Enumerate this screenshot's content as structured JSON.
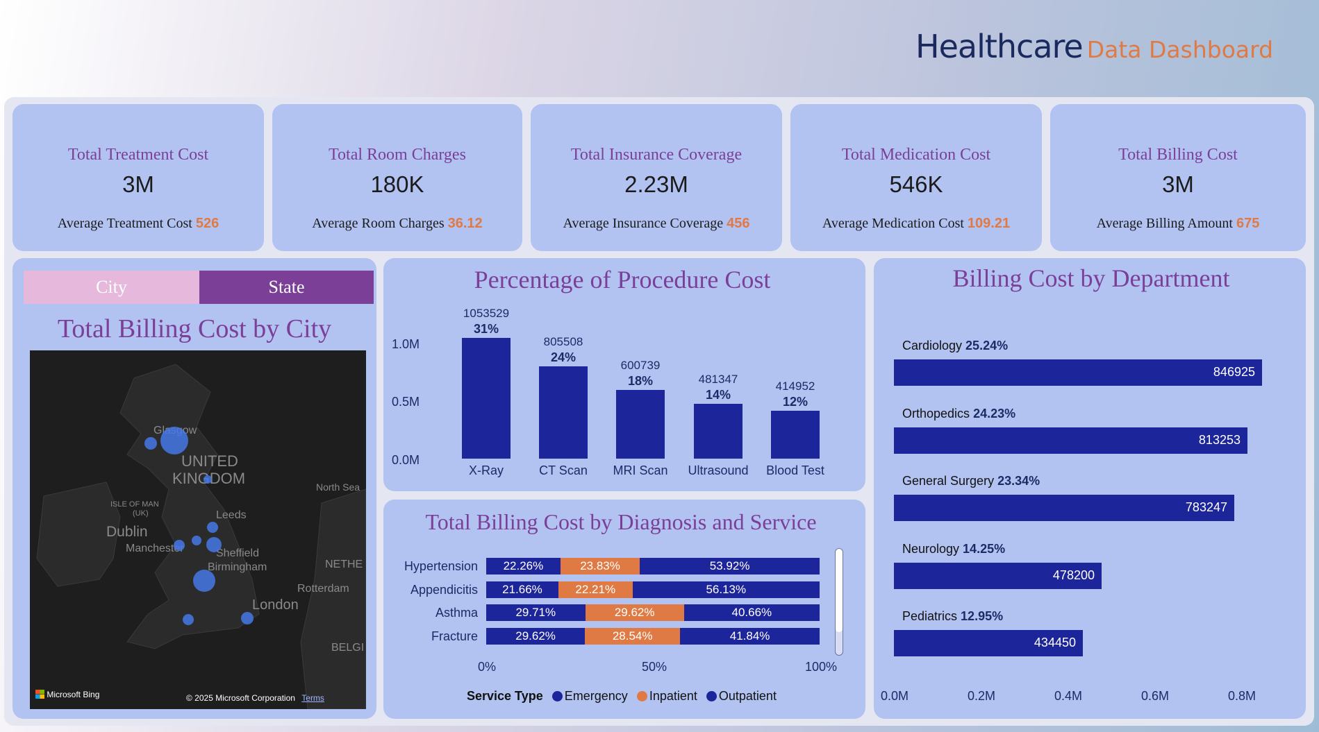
{
  "header": {
    "title": "Healthcare",
    "subtitle": "Data Dashboard"
  },
  "kpis": [
    {
      "title": "Total Treatment Cost",
      "value": "3M",
      "avg_label": "Average Treatment Cost",
      "avg_value": "526"
    },
    {
      "title": "Total Room Charges",
      "value": "180K",
      "avg_label": "Average Room Charges",
      "avg_value": "36.12"
    },
    {
      "title": "Total Insurance Coverage",
      "value": "2.23M",
      "avg_label": "Average Insurance Coverage",
      "avg_value": "456"
    },
    {
      "title": "Total Medication Cost",
      "value": "546K",
      "avg_label": "Average Medication Cost",
      "avg_value": "109.21"
    },
    {
      "title": "Total Billing Cost",
      "value": "3M",
      "avg_label": "Average Billing Amount",
      "avg_value": "675"
    }
  ],
  "toggle": {
    "city": "City",
    "state": "State",
    "city_color": "#e6b8dc",
    "state_color": "#7b3f98"
  },
  "map_panel": {
    "title": "Total Billing Cost by City",
    "labels": {
      "glasgow": "Glasgow",
      "uk_line1": "UNITED",
      "uk_line2": "KINGDOM",
      "north_sea": "North Sea",
      "isle_of_man1": "ISLE OF MAN",
      "isle_of_man2": "(UK)",
      "dublin": "Dublin",
      "leeds": "Leeds",
      "manchester": "Manchester",
      "sheffield": "Sheffield",
      "birmingham": "Birmingham",
      "nethe": "NETHE",
      "rotterdam": "Rotterdam",
      "london": "London",
      "belgi": "BELGI"
    },
    "attribution": {
      "brand": "Microsoft Bing",
      "copyright": "© 2025 Microsoft Corporation",
      "terms": "Terms"
    }
  },
  "procedure_panel": {
    "title": "Percentage of Procedure Cost",
    "y_ticks": [
      "1.0M",
      "0.5M",
      "0.0M"
    ]
  },
  "diagnosis_panel": {
    "title": "Total Billing Cost by Diagnosis and Service",
    "x_ticks": [
      "0%",
      "50%",
      "100%"
    ],
    "legend_title": "Service Type",
    "legend": [
      "Emergency",
      "Inpatient",
      "Outpatient"
    ]
  },
  "department_panel": {
    "title": "Billing Cost by Department",
    "x_ticks": [
      "0.0M",
      "0.2M",
      "0.4M",
      "0.6M",
      "0.8M"
    ]
  },
  "colors": {
    "bar": "#1c259a",
    "accent": "#e07a45",
    "title": "#7b3f98",
    "card": "#b2c3f2"
  },
  "chart_data": [
    {
      "type": "bar",
      "title": "Percentage of Procedure Cost",
      "categories": [
        "X-Ray",
        "CT Scan",
        "MRI Scan",
        "Ultrasound",
        "Blood Test"
      ],
      "values": [
        1053529,
        805508,
        600739,
        481347,
        414952
      ],
      "value_labels": [
        "1053529",
        "805508",
        "600739",
        "481347",
        "414952"
      ],
      "percent_labels": [
        "31%",
        "24%",
        "18%",
        "14%",
        "12%"
      ],
      "ylim": [
        0,
        1053529
      ]
    },
    {
      "type": "bar",
      "title": "Total Billing Cost by Diagnosis and Service",
      "orientation": "horizontal-stacked-100",
      "categories": [
        "Hypertension",
        "Appendicitis",
        "Asthma",
        "Fracture"
      ],
      "series": [
        {
          "name": "Emergency",
          "color": "#1c259a",
          "values": [
            22.26,
            21.66,
            29.71,
            29.62
          ],
          "labels": [
            "22.26%",
            "21.66%",
            "29.71%",
            "29.62%"
          ]
        },
        {
          "name": "Inpatient",
          "color": "#e07a45",
          "values": [
            23.83,
            22.21,
            29.62,
            28.54
          ],
          "labels": [
            "23.83%",
            "22.21%",
            "29.62%",
            "28.54%"
          ]
        },
        {
          "name": "Outpatient",
          "color": "#1c259a",
          "values": [
            53.92,
            56.13,
            40.66,
            41.84
          ],
          "labels": [
            "53.92%",
            "56.13%",
            "40.66%",
            "41.84%"
          ]
        }
      ],
      "xlim": [
        0,
        100
      ]
    },
    {
      "type": "bar",
      "title": "Billing Cost by Department",
      "orientation": "horizontal",
      "categories": [
        "Cardiology",
        "Orthopedics",
        "General Surgery",
        "Neurology",
        "Pediatrics"
      ],
      "percent_labels": [
        "25.24%",
        "24.23%",
        "23.34%",
        "14.25%",
        "12.95%"
      ],
      "values": [
        846925,
        813253,
        783247,
        478200,
        434450
      ],
      "value_labels": [
        "846925",
        "813253",
        "783247",
        "478200",
        "434450"
      ],
      "xlim": [
        0,
        846925
      ]
    }
  ]
}
